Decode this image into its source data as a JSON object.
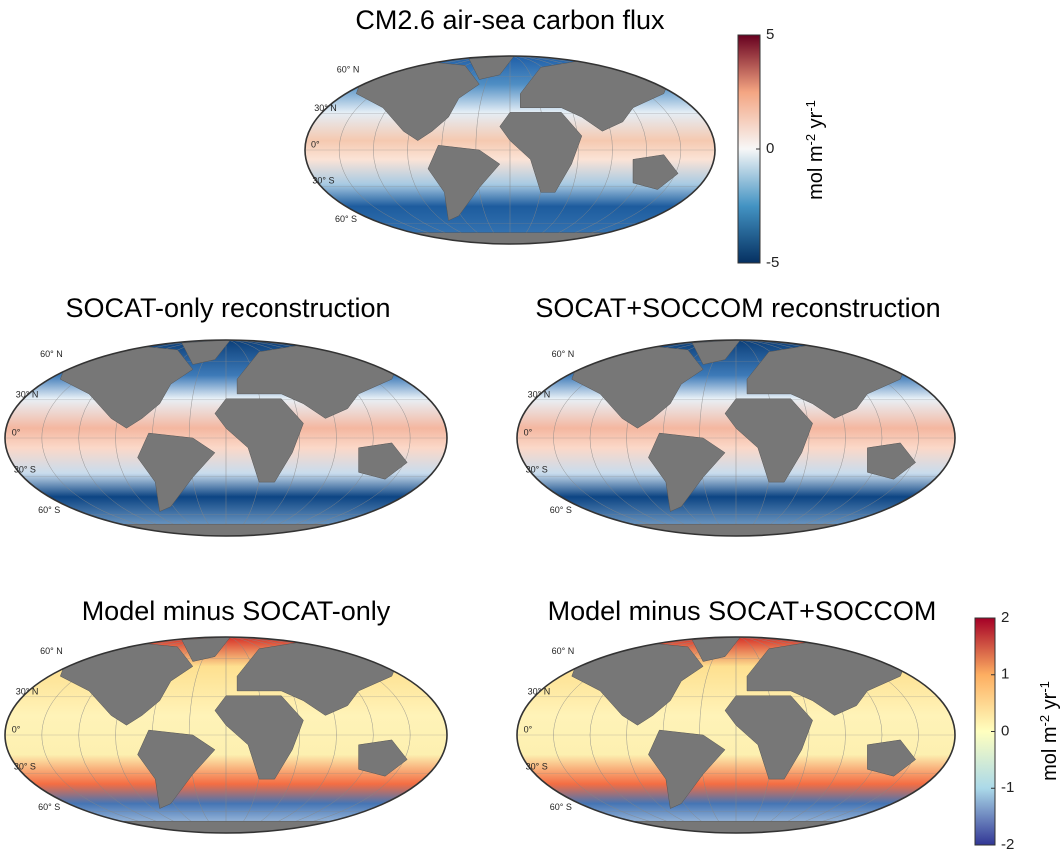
{
  "figure": {
    "panels": [
      {
        "title": "CM2.6 air-sea carbon flux",
        "lat_labels": [
          "60° N",
          "30° N",
          "0°",
          "30° S",
          "60° S"
        ]
      },
      {
        "title": "SOCAT-only reconstruction",
        "lat_labels": [
          "60° N",
          "30° N",
          "0°",
          "30° S",
          "60° S"
        ]
      },
      {
        "title": "SOCAT+SOCCOM reconstruction",
        "lat_labels": [
          "60° N",
          "30° N",
          "0°",
          "30° S",
          "60° S"
        ]
      },
      {
        "title": "Model minus SOCAT-only",
        "lat_labels": [
          "60° N",
          "30° N",
          "0°",
          "30° S",
          "60° S"
        ]
      },
      {
        "title": "Model minus SOCAT+SOCCOM",
        "lat_labels": [
          "60° N",
          "30° N",
          "0°",
          "30° S",
          "60° S"
        ]
      }
    ],
    "colorbars": [
      {
        "lim": [
          -5,
          5
        ],
        "ticks": [
          -5,
          0,
          5
        ],
        "label": {
          "base": "mol m",
          "exp1": "-2",
          "mid": " yr",
          "exp2": "-1"
        }
      },
      {
        "lim": [
          -2,
          2
        ],
        "ticks": [
          -2,
          -1,
          0,
          1,
          2
        ],
        "label": {
          "base": "mol m",
          "exp1": "-2",
          "mid": " yr",
          "exp2": "-1"
        }
      }
    ]
  }
}
